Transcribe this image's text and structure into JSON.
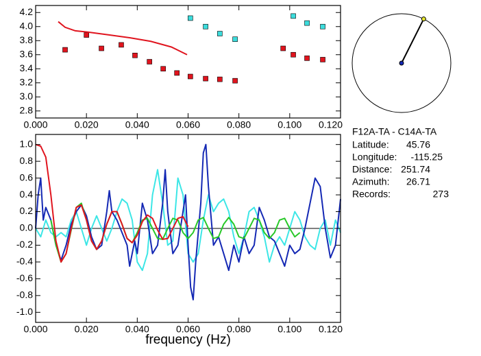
{
  "chart_data": [
    {
      "type": "scatter",
      "xlim": [
        0,
        0.12
      ],
      "ylim": [
        2.7,
        4.3
      ],
      "xticks": [
        {
          "value": 0,
          "label": "0.000"
        },
        {
          "value": 0.02,
          "label": "0.020"
        },
        {
          "value": 0.04,
          "label": "0.040"
        },
        {
          "value": 0.06,
          "label": "0.060"
        },
        {
          "value": 0.08,
          "label": "0.080"
        },
        {
          "value": 0.1,
          "label": "0.100"
        },
        {
          "value": 0.12,
          "label": "0.120"
        }
      ],
      "yticks": [
        2.8,
        3.2,
        3.4,
        3.6,
        3.8,
        {
          "value": 4.0,
          "label": "4.0"
        },
        4.2,
        {
          "value": 3.0,
          "label": "3.0"
        }
      ],
      "series": [
        {
          "mode": "markers",
          "color": "#e0141e",
          "x": [
            0.0116,
            0.02,
            0.0259,
            0.0337,
            0.0391,
            0.0448,
            0.0502,
            0.0556,
            0.0609,
            0.0669,
            0.0725,
            0.0785,
            0.0974,
            0.1014,
            0.1068,
            0.113
          ],
          "values": [
            3.67,
            3.88,
            3.69,
            3.74,
            3.59,
            3.5,
            3.4,
            3.34,
            3.29,
            3.26,
            3.25,
            3.23,
            3.69,
            3.6,
            3.55,
            3.53
          ]
        },
        {
          "mode": "markers",
          "color": "#3cdcdc",
          "x": [
            0.0609,
            0.0669,
            0.0725,
            0.0785,
            0.1014,
            0.1068,
            0.113
          ],
          "values": [
            4.12,
            4.0,
            3.9,
            3.82,
            4.15,
            4.05,
            4.0
          ]
        },
        {
          "mode": "line",
          "color": "#e0141e",
          "x": [
            0.0089,
            0.0116,
            0.0156,
            0.021,
            0.0291,
            0.0372,
            0.0453,
            0.0534,
            0.0596
          ],
          "values": [
            4.07,
            3.99,
            3.94,
            3.92,
            3.88,
            3.84,
            3.79,
            3.71,
            3.6
          ]
        }
      ]
    },
    {
      "type": "line",
      "x_label": "frequency (Hz)",
      "xlim": [
        0,
        0.12
      ],
      "ylim": [
        -1.12,
        1.12
      ],
      "zero_line": true,
      "xticks": [
        {
          "value": 0,
          "label": "0.000"
        },
        {
          "value": 0.02,
          "label": "0.020"
        },
        {
          "value": 0.04,
          "label": "0.040"
        },
        {
          "value": 0.06,
          "label": "0.060"
        },
        {
          "value": 0.08,
          "label": "0.080"
        },
        {
          "value": 0.1,
          "label": "0.100"
        },
        {
          "value": 0.12,
          "label": "0.120"
        }
      ],
      "yticks": [
        {
          "value": 1.0,
          "label": "1.0"
        },
        0.8,
        0.6,
        0.4,
        0.2,
        {
          "value": 0,
          "label": "0.0"
        },
        -0.2,
        -0.4,
        -0.6,
        -0.8,
        {
          "value": -1.0,
          "label": "-1.0"
        }
      ],
      "series": [
        {
          "color": "#3ce6e6",
          "x": [
            0,
            0.002,
            0.004,
            0.006,
            0.008,
            0.01,
            0.012,
            0.014,
            0.016,
            0.018,
            0.02,
            0.022,
            0.024,
            0.026,
            0.028,
            0.03,
            0.032,
            0.034,
            0.036,
            0.038,
            0.04,
            0.042,
            0.044,
            0.046,
            0.048,
            0.05,
            0.052,
            0.054,
            0.056,
            0.058,
            0.06,
            0.062,
            0.064,
            0.066,
            0.068,
            0.07,
            0.072,
            0.074,
            0.076,
            0.078,
            0.08,
            0.082,
            0.084,
            0.086,
            0.088,
            0.09,
            0.092,
            0.094,
            0.096,
            0.098,
            0.1,
            0.102,
            0.104,
            0.106,
            0.108,
            0.11,
            0.112,
            0.114,
            0.116,
            0.118,
            0.12
          ],
          "values": [
            0.0,
            -0.1,
            0.1,
            -0.05,
            -0.1,
            -0.05,
            -0.1,
            0.1,
            0.2,
            0.0,
            -0.2,
            0.0,
            0.15,
            0.0,
            -0.15,
            0.0,
            0.2,
            0.35,
            0.3,
            0.1,
            -0.4,
            -0.5,
            -0.3,
            0.4,
            0.7,
            0.3,
            -0.2,
            -0.15,
            0.6,
            0.4,
            -0.3,
            -0.4,
            -0.3,
            0.1,
            0.4,
            0.2,
            0.3,
            0.35,
            0.2,
            -0.1,
            -0.3,
            -0.1,
            0.2,
            0.25,
            0.1,
            -0.1,
            -0.4,
            -0.2,
            -0.1,
            -0.2,
            0.0,
            0.2,
            0.1,
            -0.1,
            -0.2,
            -0.25,
            0.0,
            0.1,
            -0.2,
            0.1,
            -0.05
          ]
        },
        {
          "color": "#1428b4",
          "x": [
            0,
            0.001,
            0.002,
            0.003,
            0.004,
            0.006,
            0.008,
            0.01,
            0.012,
            0.014,
            0.016,
            0.018,
            0.02,
            0.022,
            0.024,
            0.026,
            0.028,
            0.029,
            0.03,
            0.032,
            0.034,
            0.036,
            0.037,
            0.039,
            0.04,
            0.042,
            0.044,
            0.046,
            0.048,
            0.05,
            0.051,
            0.052,
            0.054,
            0.056,
            0.058,
            0.059,
            0.06,
            0.061,
            0.062,
            0.063,
            0.065,
            0.066,
            0.067,
            0.068,
            0.07,
            0.072,
            0.074,
            0.076,
            0.078,
            0.08,
            0.082,
            0.084,
            0.086,
            0.088,
            0.09,
            0.092,
            0.094,
            0.096,
            0.098,
            0.1,
            0.102,
            0.104,
            0.106,
            0.108,
            0.11,
            0.112,
            0.114,
            0.116,
            0.118,
            0.12
          ],
          "values": [
            0.0,
            0.4,
            0.6,
            0.1,
            0.25,
            0.1,
            -0.2,
            -0.38,
            -0.2,
            0.05,
            0.2,
            0.28,
            0.15,
            -0.1,
            -0.25,
            -0.2,
            0.2,
            0.45,
            0.2,
            0.1,
            -0.05,
            -0.2,
            -0.45,
            -0.15,
            -0.3,
            0.3,
            0.1,
            -0.3,
            -0.2,
            0.3,
            0.7,
            0.2,
            -0.3,
            -0.2,
            0.2,
            0.4,
            -0.2,
            -0.7,
            -0.85,
            -0.4,
            0.3,
            0.9,
            1.0,
            0.5,
            -0.2,
            -0.1,
            -0.3,
            -0.5,
            -0.2,
            -0.4,
            -0.1,
            -0.3,
            -0.2,
            0.25,
            0.1,
            -0.1,
            -0.15,
            -0.3,
            -0.45,
            -0.2,
            -0.3,
            -0.25,
            0.0,
            0.3,
            0.6,
            0.5,
            0.0,
            -0.35,
            -0.2,
            0.35
          ]
        },
        {
          "color": "#28c828",
          "x": [
            0.006,
            0.008,
            0.01,
            0.012,
            0.014,
            0.016,
            0.018,
            0.02,
            0.022,
            0.024,
            0.026,
            0.028,
            0.03,
            0.032,
            0.034,
            0.036,
            0.038,
            0.04,
            0.042,
            0.044,
            0.046,
            0.048,
            0.05,
            0.052,
            0.054,
            0.056,
            0.058,
            0.06,
            0.062,
            0.064,
            0.066,
            0.068,
            0.07,
            0.072,
            0.074,
            0.076,
            0.078,
            0.08,
            0.082,
            0.084,
            0.086,
            0.088,
            0.09,
            0.092,
            0.094,
            0.096,
            0.098,
            0.1,
            0.102,
            0.104
          ],
          "values": [
            0.1,
            -0.2,
            -0.4,
            -0.3,
            -0.02,
            0.25,
            0.3,
            0.1,
            -0.15,
            -0.25,
            -0.15,
            0.05,
            0.2,
            0.2,
            0.05,
            -0.12,
            -0.17,
            -0.05,
            0.1,
            0.12,
            0.0,
            -0.12,
            -0.13,
            0.0,
            0.12,
            0.1,
            -0.05,
            -0.12,
            -0.05,
            0.1,
            0.13,
            0.0,
            -0.12,
            -0.1,
            0.05,
            0.13,
            0.05,
            -0.1,
            -0.12,
            0.0,
            0.12,
            0.1,
            -0.05,
            -0.12,
            -0.05,
            0.1,
            0.12,
            0.0,
            -0.1,
            -0.05
          ]
        },
        {
          "color": "#e0141e",
          "x": [
            0,
            0.002,
            0.004,
            0.006,
            0.008,
            0.01,
            0.012,
            0.014,
            0.016,
            0.018,
            0.02,
            0.022,
            0.024,
            0.026,
            0.028,
            0.03,
            0.032,
            0.034,
            0.036,
            0.038,
            0.04,
            0.042,
            0.044,
            0.046,
            0.048,
            0.05,
            0.052,
            0.054,
            0.056,
            0.058,
            0.06
          ],
          "values": [
            1.0,
            0.98,
            0.85,
            0.4,
            -0.15,
            -0.4,
            -0.3,
            0.0,
            0.25,
            0.28,
            0.1,
            -0.15,
            -0.25,
            -0.15,
            0.05,
            0.2,
            0.2,
            0.05,
            -0.12,
            -0.17,
            -0.08,
            0.08,
            0.16,
            0.12,
            -0.02,
            -0.13,
            -0.12,
            0.0,
            0.12,
            0.14,
            0.02
          ]
        }
      ]
    }
  ],
  "info": {
    "title": "F12A-TA - C14A-TA",
    "rows": [
      {
        "label": "Latitude:",
        "value": 45.76
      },
      {
        "label": "Longitude:",
        "value": -115.25
      },
      {
        "label": "Distance:",
        "value": 251.74
      },
      {
        "label": "Azimuth:",
        "value": 26.71
      },
      {
        "label": "Records:",
        "value": 273
      }
    ]
  }
}
